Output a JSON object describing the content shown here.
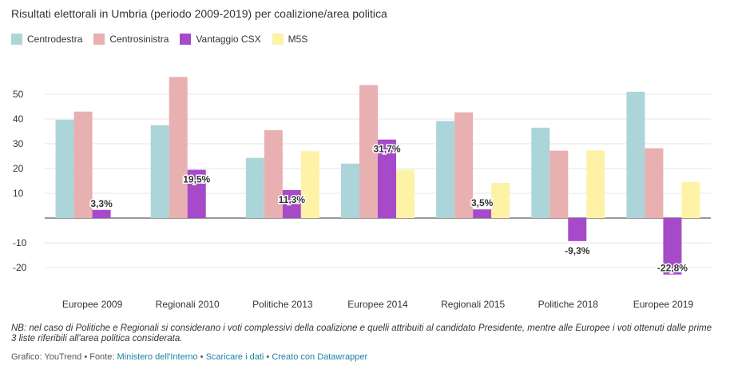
{
  "title": "Risultati elettorali in Umbria (periodo 2009-2019) per coalizione/area politica",
  "legend": [
    {
      "name": "Centrodestra",
      "color": "#acd5da"
    },
    {
      "name": "Centrosinistra",
      "color": "#e8b0b0"
    },
    {
      "name": "Vantaggio CSX",
      "color": "#a64ac9"
    },
    {
      "name": "M5S",
      "color": "#fdf2a6"
    }
  ],
  "chart_data": {
    "type": "bar",
    "categories": [
      "Europee 2009",
      "Regionali 2010",
      "Politiche 2013",
      "Europee 2014",
      "Regionali 2015",
      "Politiche 2018",
      "Europee 2019"
    ],
    "series": [
      {
        "name": "Centrodestra",
        "color": "#acd5da",
        "values": [
          39.7,
          37.5,
          24.3,
          22.0,
          39.2,
          36.5,
          51.0
        ]
      },
      {
        "name": "Centrosinistra",
        "color": "#e8b0b0",
        "values": [
          43.0,
          57.0,
          35.5,
          53.7,
          42.7,
          27.2,
          28.2
        ]
      },
      {
        "name": "Vantaggio CSX",
        "color": "#a64ac9",
        "values": [
          3.3,
          19.5,
          11.3,
          31.7,
          3.5,
          -9.3,
          -22.8
        ],
        "labels": [
          "3,3%",
          "19,5%",
          "11,3%",
          "31,7%",
          "3,5%",
          "-9,3%",
          "-22,8%"
        ]
      },
      {
        "name": "M5S",
        "color": "#fdf2a6",
        "values": [
          null,
          null,
          27.0,
          19.5,
          14.2,
          27.3,
          14.6
        ]
      }
    ],
    "yticks": [
      50,
      40,
      30,
      20,
      10,
      -10,
      -20
    ],
    "ylim": [
      -25,
      60
    ],
    "grid": true
  },
  "note": "NB: nel caso di Politiche e Regionali si considerano i voti complessivi della coalizione e quelli attribuiti al candidato Presidente, mentre alle Europee i voti ottenuti dalle prime 3 liste riferibili all'area politica considerata.",
  "footer": {
    "prefix": "Grafico: YouTrend • Fonte: ",
    "source": "Ministero dell'Interno",
    "sep1": " • ",
    "data_link": "Scaricare i dati",
    "sep2": " • ",
    "made_with": "Creato con Datawrapper"
  }
}
